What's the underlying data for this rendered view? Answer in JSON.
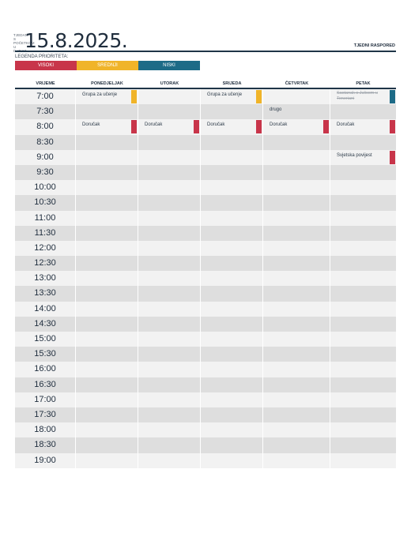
{
  "header": {
    "vertical_label": [
      "TJEDAN",
      "S",
      "POČETKOM",
      "U",
      "DATUM"
    ],
    "date": "15.8.2025.",
    "schedule_title": "TJEDNI RASPORED"
  },
  "legend": {
    "label": "LEGENDA PRIORITETA:",
    "items": [
      {
        "label": "VISOKI",
        "color": "#c8354a"
      },
      {
        "label": "SREDNJI",
        "color": "#f0b429"
      },
      {
        "label": "NISKI",
        "color": "#1d6b87"
      }
    ]
  },
  "columns": [
    "VRIJEME",
    "PONEDJELJAK",
    "UTORAK",
    "SRIJEDA",
    "ČETVRTAK",
    "PETAK"
  ],
  "times": [
    "7:00",
    "7:30",
    "8:00",
    "8:30",
    "9:00",
    "9:30",
    "10:00",
    "10:30",
    "11:00",
    "11:30",
    "12:00",
    "12:30",
    "13:00",
    "13:30",
    "14:00",
    "14:30",
    "15:00",
    "15:30",
    "16:00",
    "16:30",
    "17:00",
    "17:30",
    "18:00",
    "18:30",
    "19:00"
  ],
  "events": [
    {
      "row": 0,
      "col": 1,
      "text": "Grupa za učenje",
      "color": "#f0b429",
      "strike": false
    },
    {
      "row": 0,
      "col": 3,
      "text": "Grupa za učenje",
      "color": "#f0b429",
      "strike": false
    },
    {
      "row": 0,
      "col": 5,
      "text": "Sastanak s Julicom u Teneriani",
      "color": "#1d6b87",
      "strike": true
    },
    {
      "row": 1,
      "col": 4,
      "text": "drugo",
      "color": "",
      "strike": false
    },
    {
      "row": 2,
      "col": 1,
      "text": "Doručak",
      "color": "#c8354a",
      "strike": false
    },
    {
      "row": 2,
      "col": 2,
      "text": "Doručak",
      "color": "#c8354a",
      "strike": false
    },
    {
      "row": 2,
      "col": 3,
      "text": "Doručak",
      "color": "#c8354a",
      "strike": false
    },
    {
      "row": 2,
      "col": 4,
      "text": "Doručak",
      "color": "#c8354a",
      "strike": false
    },
    {
      "row": 2,
      "col": 5,
      "text": "Doručak",
      "color": "#c8354a",
      "strike": false
    },
    {
      "row": 4,
      "col": 5,
      "text": "Svjetska povijest",
      "color": "#c8354a",
      "strike": false
    }
  ]
}
